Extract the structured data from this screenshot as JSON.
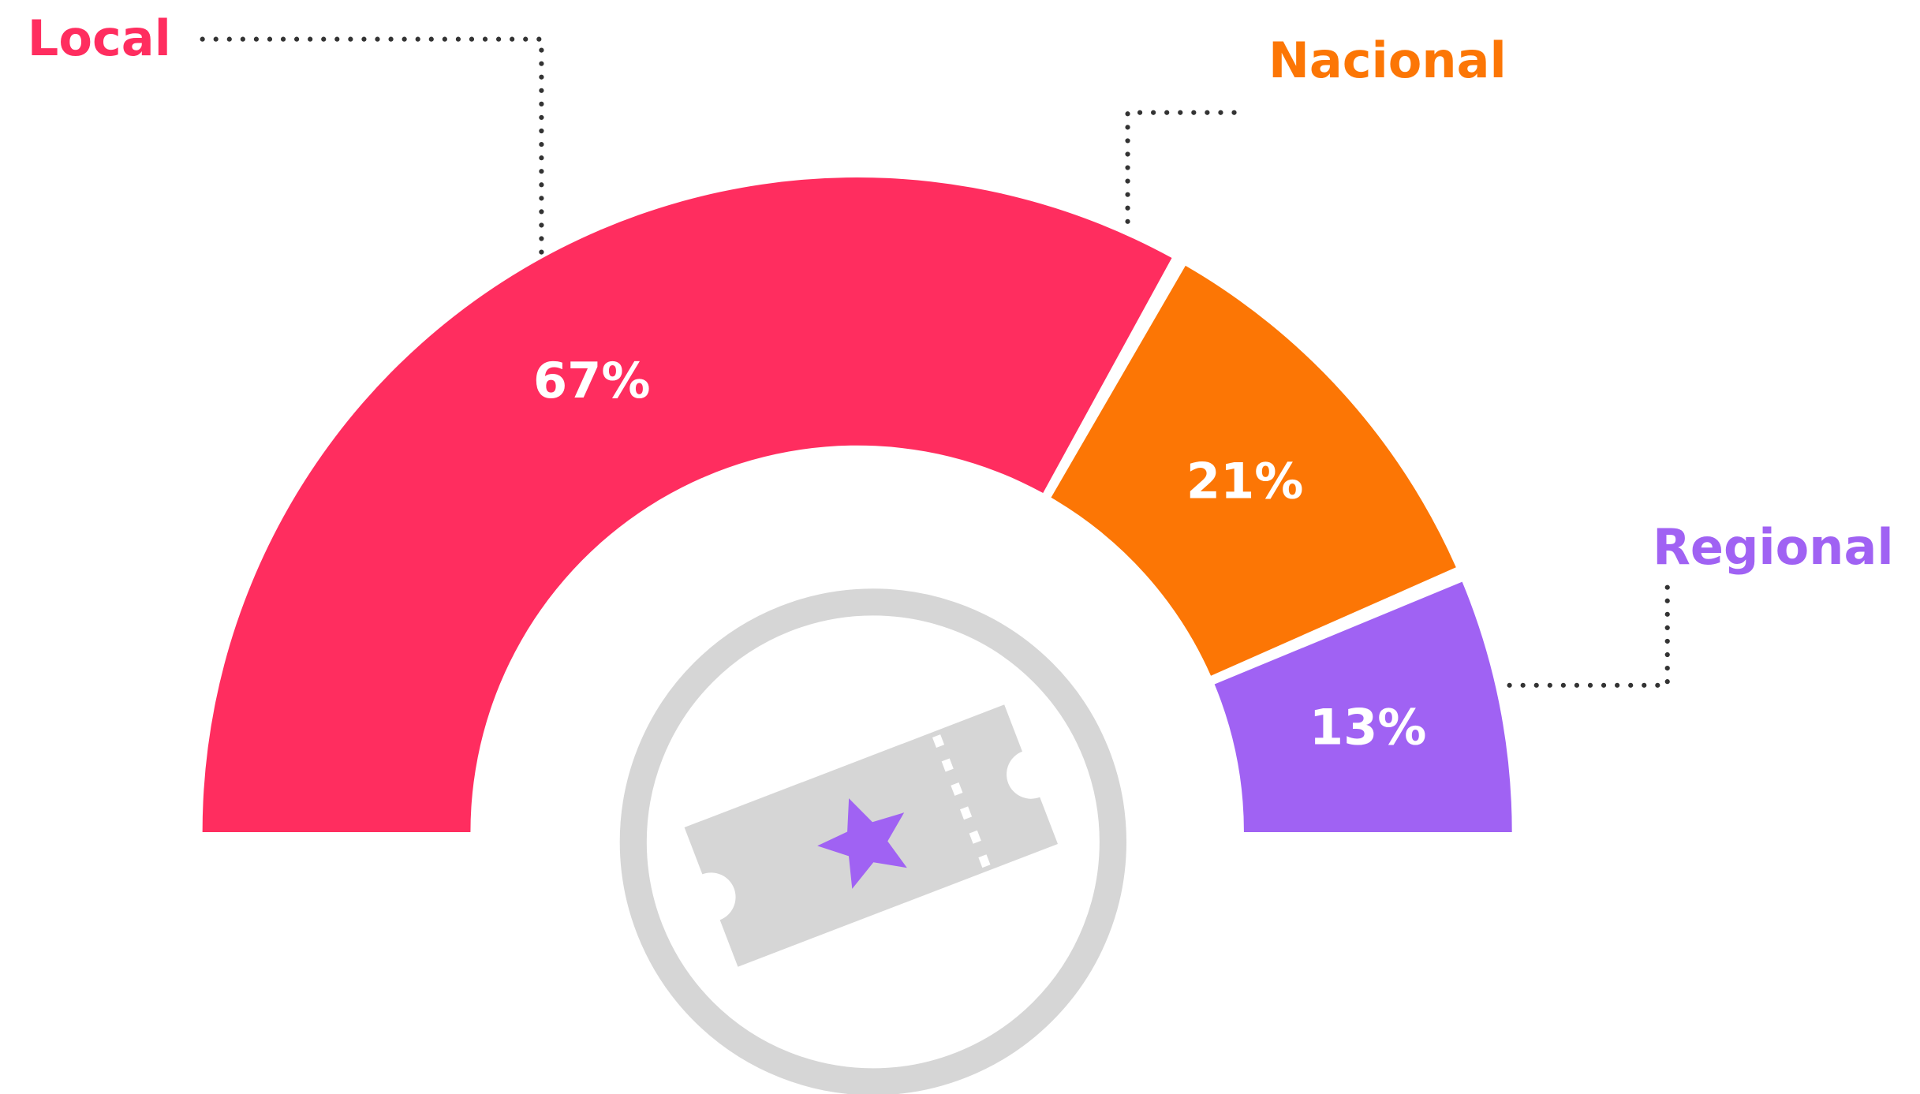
{
  "chart_data": {
    "type": "semi-donut",
    "categories": [
      "Local",
      "Nacional",
      "Regional"
    ],
    "values": [
      67,
      21,
      13
    ],
    "value_labels": [
      "67%",
      "21%",
      "13%"
    ],
    "colors": [
      "#ff2d5f",
      "#fc7605",
      "#a062f3"
    ]
  }
}
